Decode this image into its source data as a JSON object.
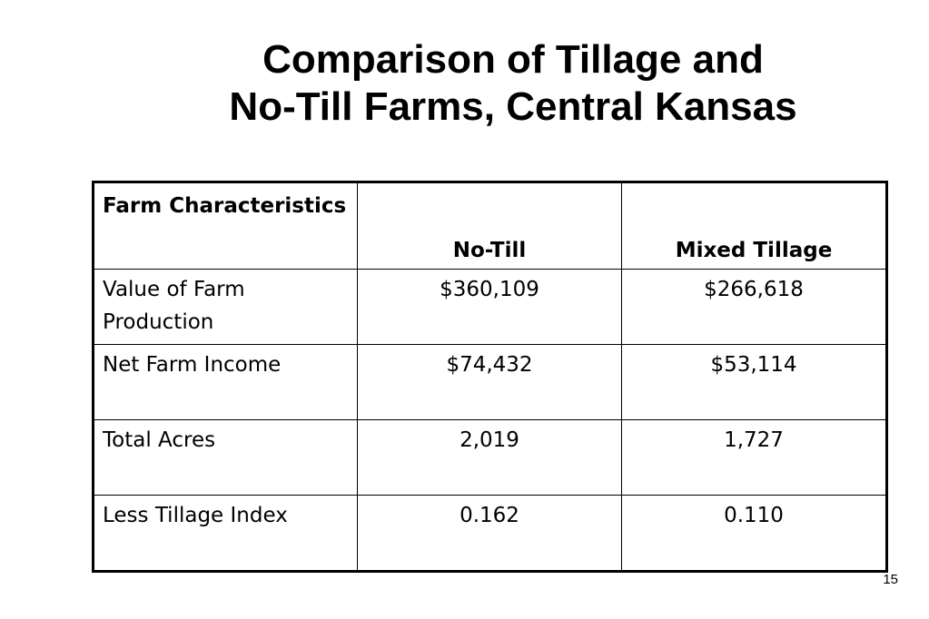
{
  "slide": {
    "title_line1": "Comparison of Tillage and",
    "title_line2": "No-Till Farms, Central Kansas",
    "page_number": "15"
  },
  "table": {
    "headers": [
      "Farm Characteristics",
      "No-Till",
      "Mixed Tillage"
    ],
    "rows": [
      [
        "Value of Farm Production",
        "$360,109",
        "$266,618"
      ],
      [
        "Net Farm Income",
        "$74,432",
        "$53,114"
      ],
      [
        "Total Acres",
        "2,019",
        "1,727"
      ],
      [
        "Less Tillage Index",
        "0.162",
        "0.110"
      ]
    ]
  }
}
